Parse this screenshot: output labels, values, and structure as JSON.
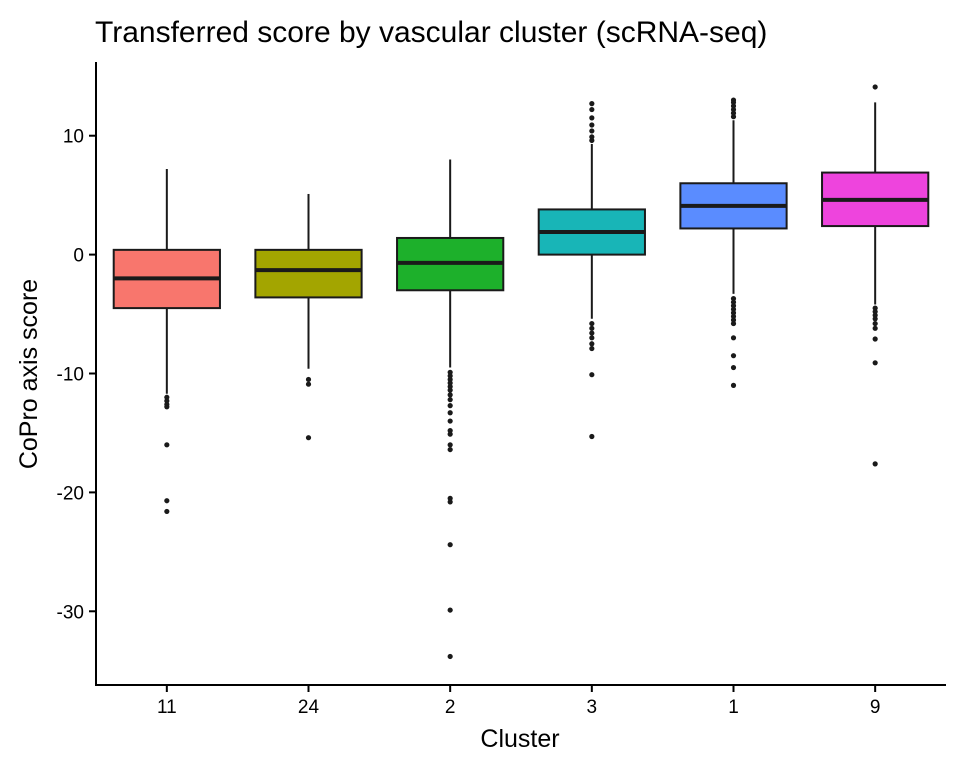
{
  "chart_data": {
    "type": "box",
    "title": "Transferred score by vascular cluster (scRNA-seq)",
    "xlabel": "Cluster",
    "ylabel": "CoPro axis score",
    "ylim": [
      -36.2,
      16.2
    ],
    "yticks": [
      10,
      0,
      -10,
      -20,
      -30
    ],
    "ytick_labels": [
      "10",
      "0",
      "-10",
      "-20",
      "-30"
    ],
    "grid": false,
    "legend": "none",
    "categories": [
      "11",
      "24",
      "2",
      "3",
      "1",
      "9"
    ],
    "boxes": [
      {
        "category": "11",
        "color": "#F8766D",
        "q1": -4.5,
        "median": -2.0,
        "q3": 0.4,
        "whisker_low": -11.7,
        "whisker_high": 7.2,
        "outliers": [
          -12.0,
          -12.3,
          -12.6,
          -12.8,
          -16.0,
          -20.7,
          -21.6
        ]
      },
      {
        "category": "24",
        "color": "#A3A500",
        "color_note": "",
        "q1": -3.6,
        "median": -1.3,
        "q3": 0.4,
        "whisker_low": -9.6,
        "whisker_high": 5.1,
        "outliers": [
          -10.5,
          -10.9,
          -15.4
        ]
      },
      {
        "category": "2",
        "color": "#1DB02B",
        "q1": -3.0,
        "median": -0.7,
        "q3": 1.4,
        "whisker_low": -9.5,
        "whisker_high": 8.0,
        "outliers": [
          -9.9,
          -10.2,
          -10.5,
          -10.8,
          -11.1,
          -11.4,
          -11.8,
          -12.2,
          -12.7,
          -13.3,
          -14.0,
          -14.8,
          -15.1,
          -16.0,
          -16.4,
          -20.5,
          -20.8,
          -24.4,
          -29.9,
          -33.8
        ]
      },
      {
        "category": "3",
        "color": "#18B5B7",
        "q1": 0.0,
        "median": 1.9,
        "q3": 3.8,
        "whisker_low": -5.4,
        "whisker_high": 9.3,
        "outliers": [
          9.6,
          9.9,
          10.4,
          10.9,
          11.5,
          12.2,
          12.7,
          -5.8,
          -6.2,
          -6.6,
          -7.0,
          -7.5,
          -7.9,
          -10.1,
          -15.3
        ]
      },
      {
        "category": "1",
        "color": "#5A8CFF",
        "q1": 2.2,
        "median": 4.1,
        "q3": 6.0,
        "whisker_low": -3.3,
        "whisker_high": 11.3,
        "outliers": [
          11.6,
          11.9,
          12.2,
          12.5,
          12.8,
          13.0,
          -3.7,
          -4.0,
          -4.3,
          -4.6,
          -4.9,
          -5.2,
          -5.5,
          -5.8,
          -7.0,
          -8.5,
          -9.5,
          -11.0
        ]
      },
      {
        "category": "9",
        "color": "#EE44DD",
        "q1": 2.4,
        "median": 4.6,
        "q3": 6.9,
        "whisker_low": -4.2,
        "whisker_high": 12.8,
        "outliers": [
          14.1,
          -4.5,
          -4.8,
          -5.1,
          -5.4,
          -5.8,
          -6.2,
          -7.1,
          -9.1,
          -17.6
        ]
      }
    ]
  }
}
